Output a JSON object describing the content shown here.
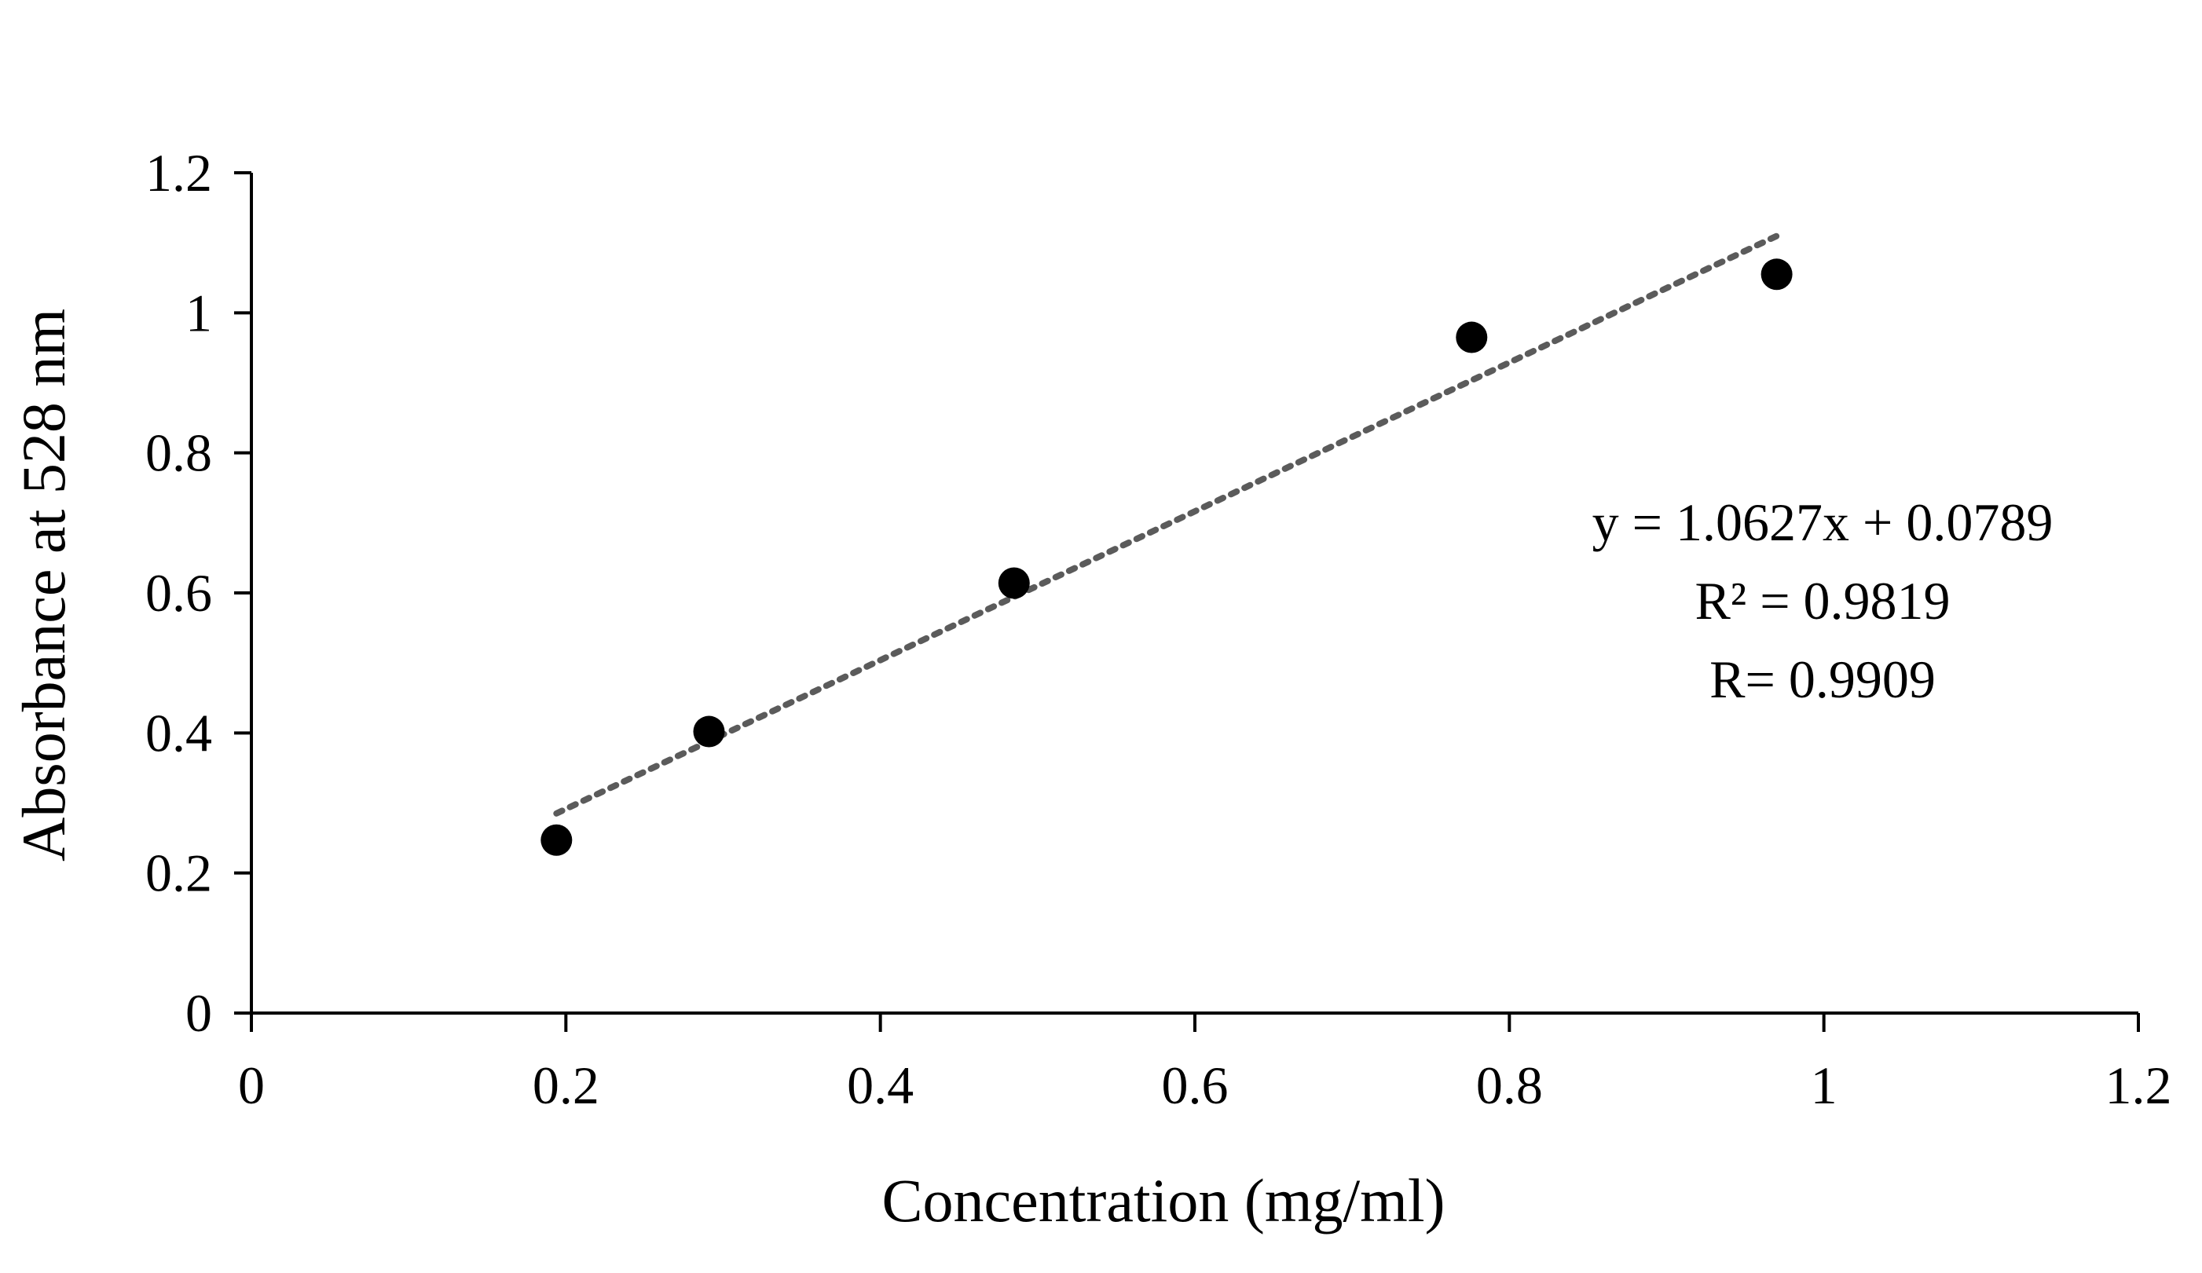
{
  "chart_data": {
    "type": "scatter",
    "title": "",
    "xlabel": "Concentration (mg/ml)",
    "ylabel": "Absorbance at 528 nm",
    "xlim": [
      0,
      1.2
    ],
    "ylim": [
      0,
      1.2
    ],
    "x_ticks": [
      0,
      0.2,
      0.4,
      0.6,
      0.8,
      1,
      1.2
    ],
    "x_tick_labels": [
      "0",
      "0.2",
      "0.4",
      "0.6",
      "0.8",
      "1",
      "1.2"
    ],
    "y_ticks": [
      0,
      0.2,
      0.4,
      0.6,
      0.8,
      1,
      1.2
    ],
    "y_tick_labels": [
      "0",
      "0.2",
      "0.4",
      "0.6",
      "0.8",
      "1",
      "1.2"
    ],
    "grid": false,
    "legend": false,
    "series": [
      {
        "name": "Absorbance",
        "x": [
          0.194,
          0.291,
          0.485,
          0.776,
          0.97
        ],
        "y": [
          0.247,
          0.402,
          0.614,
          0.965,
          1.055
        ]
      }
    ],
    "trendline": {
      "type": "linear",
      "style": "dotted",
      "slope": 1.0627,
      "intercept": 0.0789,
      "x_range": [
        0.194,
        0.97
      ]
    },
    "annotations": [
      "y = 1.0627x + 0.0789",
      "R² = 0.9819",
      "R= 0.9909"
    ],
    "colors": {
      "marker": "#000000",
      "trendline": "#5b5b5b",
      "axis": "#000000"
    }
  }
}
